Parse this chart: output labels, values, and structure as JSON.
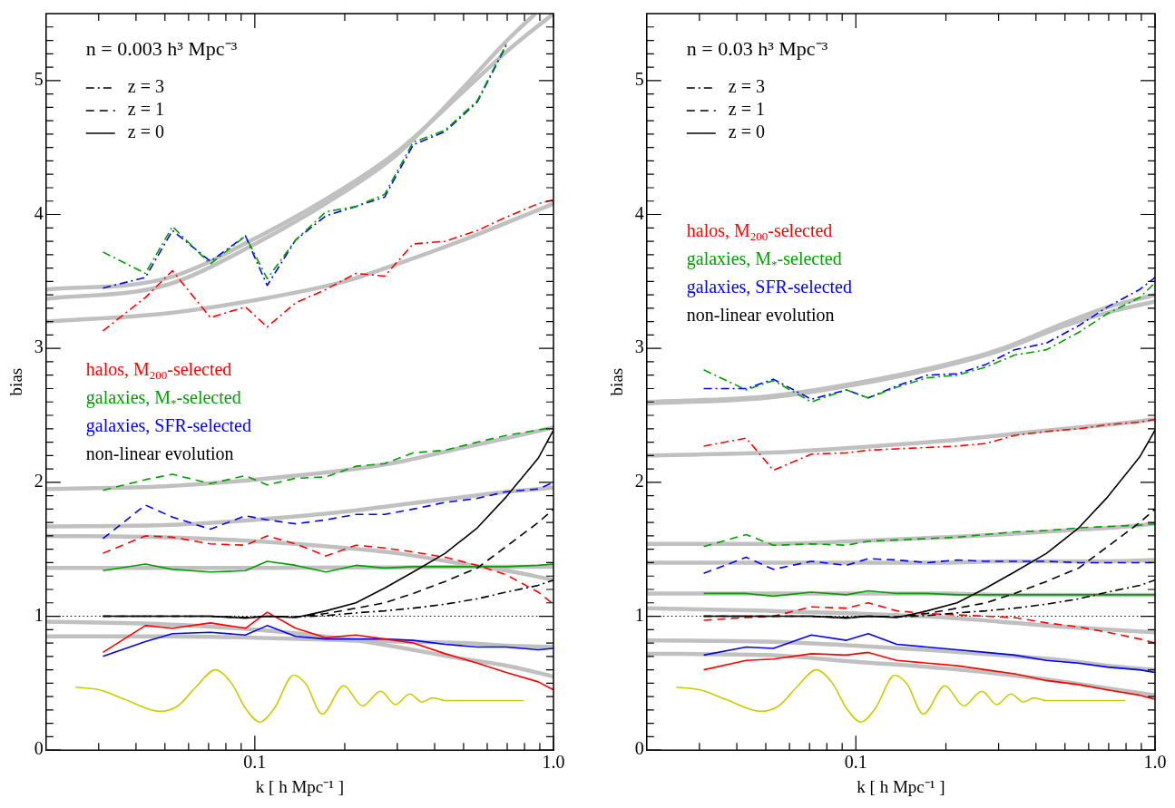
{
  "chart_data": [
    {
      "type": "line",
      "xlabel": "k [ h Mpc⁻¹ ]",
      "ylabel": "bias",
      "log": "x",
      "legend": "top left",
      "xlim": [
        0.02,
        1
      ],
      "ylim": [
        0,
        5.5
      ],
      "xticks": [
        {
          "value": 0.03,
          "label": null
        },
        {
          "value": 0.04,
          "label": null
        },
        {
          "value": 0.05,
          "label": null
        },
        {
          "value": 0.06,
          "label": null
        },
        {
          "value": 0.07,
          "label": null
        },
        {
          "value": 0.08,
          "label": null
        },
        {
          "value": 0.09,
          "label": null
        },
        0.1,
        {
          "value": 0.2,
          "label": null
        },
        {
          "value": 0.3,
          "label": null
        },
        {
          "value": 0.4,
          "label": null
        },
        {
          "value": 0.5,
          "label": null
        },
        {
          "value": 0.6,
          "label": null
        },
        {
          "value": 0.7,
          "label": null
        },
        {
          "value": 0.8,
          "label": null
        },
        {
          "value": 0.9,
          "label": null
        },
        {
          "value": 1,
          "label": "1.0"
        }
      ],
      "yticks": [
        0,
        {
          "value": 0.1,
          "label": null
        },
        {
          "value": 0.2,
          "label": null
        },
        {
          "value": 0.3,
          "label": null
        },
        {
          "value": 0.4,
          "label": null
        },
        {
          "value": 0.5,
          "label": null
        },
        {
          "value": 0.6,
          "label": null
        },
        {
          "value": 0.7,
          "label": null
        },
        {
          "value": 0.8,
          "label": null
        },
        {
          "value": 0.9,
          "label": null
        },
        1,
        {
          "value": 1.1,
          "label": null
        },
        {
          "value": 1.2,
          "label": null
        },
        {
          "value": 1.3,
          "label": null
        },
        {
          "value": 1.4,
          "label": null
        },
        {
          "value": 1.5,
          "label": null
        },
        {
          "value": 1.6,
          "label": null
        },
        {
          "value": 1.7,
          "label": null
        },
        {
          "value": 1.8,
          "label": null
        },
        {
          "value": 1.9,
          "label": null
        },
        2,
        {
          "value": 2.1,
          "label": null
        },
        {
          "value": 2.2,
          "label": null
        },
        {
          "value": 2.3,
          "label": null
        },
        {
          "value": 2.4,
          "label": null
        },
        {
          "value": 2.5,
          "label": null
        },
        {
          "value": 2.6,
          "label": null
        },
        {
          "value": 2.7,
          "label": null
        },
        {
          "value": 2.8,
          "label": null
        },
        {
          "value": 2.9,
          "label": null
        },
        3,
        {
          "value": 3.1,
          "label": null
        },
        {
          "value": 3.2,
          "label": null
        },
        {
          "value": 3.3,
          "label": null
        },
        {
          "value": 3.4,
          "label": null
        },
        {
          "value": 3.5,
          "label": null
        },
        {
          "value": 3.6,
          "label": null
        },
        {
          "value": 3.7,
          "label": null
        },
        {
          "value": 3.8,
          "label": null
        },
        {
          "value": 3.9,
          "label": null
        },
        4,
        {
          "value": 4.1,
          "label": null
        },
        {
          "value": 4.2,
          "label": null
        },
        {
          "value": 4.3,
          "label": null
        },
        {
          "value": 4.4,
          "label": null
        },
        {
          "value": 4.5,
          "label": null
        },
        {
          "value": 4.6,
          "label": null
        },
        {
          "value": 4.7,
          "label": null
        },
        {
          "value": 4.8,
          "label": null
        },
        {
          "value": 4.9,
          "label": null
        },
        5,
        {
          "value": 5.1,
          "label": null
        },
        {
          "value": 5.2,
          "label": null
        },
        {
          "value": 5.3,
          "label": null
        },
        {
          "value": 5.4,
          "label": null
        }
      ],
      "annotations": [
        "n = 0.003 h³ Mpc⁻³",
        "non-linear evolution"
      ],
      "ref_lines": [
        {
          "axis": "y",
          "value": 1,
          "color": "#000000",
          "line_style": "dotted"
        }
      ],
      "x": [
        0.031,
        0.043,
        0.053,
        0.071,
        0.093,
        0.11,
        0.137,
        0.173,
        0.218,
        0.272,
        0.339,
        0.434,
        0.556,
        0.694,
        0.889,
        1.0
      ],
      "series": [
        {
          "name": "z = 3",
          "color": "#000000",
          "line_style": "dashdot",
          "values": [
            1,
            1,
            1,
            1,
            0.99,
            1,
            0.995,
            1.005,
            1.025,
            1.04,
            1.06,
            1.09,
            1.13,
            1.18,
            1.23,
            1.27
          ]
        },
        {
          "name": "z = 1",
          "color": "#000000",
          "line_style": "dashed",
          "values": [
            1,
            1,
            1,
            1,
            0.99,
            1,
            0.995,
            1.02,
            1.06,
            1.1,
            1.17,
            1.26,
            1.36,
            1.52,
            1.7,
            1.8
          ]
        },
        {
          "name": "z = 0",
          "color": "#000000",
          "line_style": "solid",
          "values": [
            1,
            1,
            1,
            1,
            0.985,
            1,
            0.99,
            1.04,
            1.1,
            1.21,
            1.33,
            1.47,
            1.66,
            1.89,
            2.18,
            2.39
          ]
        },
        {
          "color": "#ff0000",
          "line_style": "dashdot",
          "values": [
            3.13,
            3.38,
            3.58,
            3.23,
            3.31,
            3.16,
            3.34,
            3.44,
            3.56,
            3.54,
            3.78,
            3.8,
            3.88,
            3.98,
            4.08,
            4.11
          ]
        },
        {
          "color": "#ff0000",
          "line_style": "dashed",
          "values": [
            1.47,
            1.6,
            1.59,
            1.54,
            1.53,
            1.6,
            1.54,
            1.45,
            1.53,
            1.51,
            1.48,
            1.44,
            1.38,
            1.31,
            1.18,
            1.09
          ]
        },
        {
          "name": "halos, M$_{200}$-selected",
          "color": "#ff0000",
          "line_style": "solid",
          "values": [
            0.73,
            0.93,
            0.91,
            0.95,
            0.91,
            1.03,
            0.91,
            0.84,
            0.86,
            0.83,
            0.8,
            0.72,
            0.65,
            0.58,
            0.51,
            0.45
          ]
        },
        {
          "color": "#00a000",
          "line_style": "dashdot",
          "values": [
            3.72,
            3.56,
            3.91,
            3.63,
            3.84,
            3.52,
            3.81,
            4.02,
            4.06,
            4.15,
            4.54,
            4.63,
            4.85,
            5.27,
            null,
            null
          ]
        },
        {
          "color": "#00a000",
          "line_style": "dashed",
          "values": [
            1.94,
            2.02,
            2.06,
            1.99,
            2.05,
            1.98,
            2.03,
            2.04,
            2.12,
            2.14,
            2.22,
            2.24,
            2.3,
            2.35,
            2.39,
            2.41
          ]
        },
        {
          "name": "galaxies, M$_{*}$-selected",
          "color": "#00a000",
          "line_style": "solid",
          "values": [
            1.34,
            1.39,
            1.35,
            1.33,
            1.34,
            1.41,
            1.38,
            1.33,
            1.38,
            1.36,
            1.37,
            1.37,
            1.37,
            1.37,
            1.38,
            1.39
          ]
        },
        {
          "color": "#0000ff",
          "line_style": "dashdot",
          "values": [
            3.45,
            3.53,
            3.88,
            3.65,
            3.84,
            3.47,
            3.81,
            3.99,
            4.06,
            4.13,
            4.52,
            4.62,
            4.84,
            5.26,
            null,
            null
          ]
        },
        {
          "color": "#0000ff",
          "line_style": "dashed",
          "values": [
            1.58,
            1.83,
            1.74,
            1.65,
            1.75,
            1.72,
            1.69,
            1.72,
            1.76,
            1.76,
            1.8,
            1.85,
            1.88,
            1.93,
            1.95,
            2.0
          ]
        },
        {
          "name": "galaxies, SFR-selected",
          "color": "#0000ff",
          "line_style": "solid",
          "values": [
            0.7,
            0.81,
            0.87,
            0.88,
            0.86,
            0.93,
            0.85,
            0.83,
            0.83,
            0.83,
            0.82,
            0.79,
            0.77,
            0.77,
            0.75,
            0.76
          ]
        },
        {
          "color": "#cccc00",
          "line_style": "solid",
          "x": [
            0.0251,
            0.0302,
            0.0366,
            0.0481,
            0.0552,
            0.0634,
            0.0738,
            0.0835,
            0.0932,
            0.104,
            0.116,
            0.135,
            0.1486,
            0.168,
            0.1984,
            0.2296,
            0.2636,
            0.296,
            0.33,
            0.363,
            0.394,
            0.434,
            0.572,
            0.796
          ],
          "values": [
            0.47,
            0.45,
            0.38,
            0.29,
            0.33,
            0.47,
            0.6,
            0.5,
            0.31,
            0.21,
            0.31,
            0.56,
            0.49,
            0.27,
            0.48,
            0.33,
            0.44,
            0.34,
            0.42,
            0.36,
            0.39,
            0.37,
            0.37,
            0.37
          ]
        },
        {
          "color": "#c0c0c0",
          "x": [
            0.02,
            0.05,
            0.1,
            0.2,
            0.3,
            0.5,
            0.7,
            1
          ],
          "values": [
            3.44,
            3.52,
            3.82,
            4.2,
            4.47,
            4.92,
            5.22,
            5.5
          ]
        },
        {
          "color": "#c0c0c0",
          "x": [
            0.02,
            0.05,
            0.1,
            0.2,
            0.3,
            0.5,
            0.7,
            0.87
          ],
          "values": [
            3.37,
            3.47,
            3.78,
            4.17,
            4.45,
            4.95,
            5.3,
            5.5
          ]
        },
        {
          "color": "#c0c0c0",
          "x": [
            0.02,
            0.05,
            0.1,
            0.2,
            0.3,
            0.5,
            0.7,
            1
          ],
          "values": [
            3.2,
            3.26,
            3.36,
            3.5,
            3.63,
            3.81,
            3.94,
            4.08
          ]
        },
        {
          "color": "#c0c0c0",
          "x": [
            0.02,
            0.05,
            0.1,
            0.2,
            0.3,
            0.5,
            0.7,
            1
          ],
          "values": [
            1.95,
            1.97,
            2.02,
            2.09,
            2.15,
            2.26,
            2.33,
            2.41
          ]
        },
        {
          "color": "#c0c0c0",
          "x": [
            0.02,
            0.05,
            0.1,
            0.2,
            0.3,
            0.5,
            0.7,
            1
          ],
          "values": [
            1.67,
            1.68,
            1.72,
            1.78,
            1.83,
            1.89,
            1.93,
            1.96
          ]
        },
        {
          "color": "#c0c0c0",
          "x": [
            0.02,
            0.05,
            0.1,
            0.2,
            0.3,
            0.5,
            0.7,
            1
          ],
          "values": [
            1.6,
            1.59,
            1.56,
            1.51,
            1.47,
            1.39,
            1.34,
            1.27
          ]
        },
        {
          "color": "#c0c0c0",
          "x": [
            0.02,
            0.05,
            0.1,
            0.2,
            0.3,
            0.5,
            0.7,
            1
          ],
          "values": [
            1.36,
            1.36,
            1.36,
            1.365,
            1.365,
            1.37,
            1.37,
            1.37
          ]
        },
        {
          "color": "#c0c0c0",
          "x": [
            0.02,
            0.05,
            0.1,
            0.2,
            0.3,
            0.5,
            0.7,
            1
          ],
          "values": [
            0.85,
            0.85,
            0.84,
            0.82,
            0.81,
            0.8,
            0.78,
            0.77
          ]
        },
        {
          "color": "#c0c0c0",
          "x": [
            0.02,
            0.05,
            0.1,
            0.2,
            0.3,
            0.5,
            0.7,
            1
          ],
          "values": [
            0.96,
            0.94,
            0.9,
            0.83,
            0.77,
            0.68,
            0.63,
            0.55
          ]
        }
      ]
    },
    {
      "type": "line",
      "xlabel": "k [ h Mpc⁻¹ ]",
      "ylabel": "bias",
      "log": "x",
      "legend": "top left",
      "xlim": [
        0.02,
        1
      ],
      "ylim": [
        0,
        5.5
      ],
      "xticks": [
        {
          "value": 0.03,
          "label": null
        },
        {
          "value": 0.04,
          "label": null
        },
        {
          "value": 0.05,
          "label": null
        },
        {
          "value": 0.06,
          "label": null
        },
        {
          "value": 0.07,
          "label": null
        },
        {
          "value": 0.08,
          "label": null
        },
        {
          "value": 0.09,
          "label": null
        },
        0.1,
        {
          "value": 0.2,
          "label": null
        },
        {
          "value": 0.3,
          "label": null
        },
        {
          "value": 0.4,
          "label": null
        },
        {
          "value": 0.5,
          "label": null
        },
        {
          "value": 0.6,
          "label": null
        },
        {
          "value": 0.7,
          "label": null
        },
        {
          "value": 0.8,
          "label": null
        },
        {
          "value": 0.9,
          "label": null
        },
        {
          "value": 1,
          "label": "1.0"
        }
      ],
      "yticks": [
        0,
        {
          "value": 0.1,
          "label": null
        },
        {
          "value": 0.2,
          "label": null
        },
        {
          "value": 0.3,
          "label": null
        },
        {
          "value": 0.4,
          "label": null
        },
        {
          "value": 0.5,
          "label": null
        },
        {
          "value": 0.6,
          "label": null
        },
        {
          "value": 0.7,
          "label": null
        },
        {
          "value": 0.8,
          "label": null
        },
        {
          "value": 0.9,
          "label": null
        },
        1,
        {
          "value": 1.1,
          "label": null
        },
        {
          "value": 1.2,
          "label": null
        },
        {
          "value": 1.3,
          "label": null
        },
        {
          "value": 1.4,
          "label": null
        },
        {
          "value": 1.5,
          "label": null
        },
        {
          "value": 1.6,
          "label": null
        },
        {
          "value": 1.7,
          "label": null
        },
        {
          "value": 1.8,
          "label": null
        },
        {
          "value": 1.9,
          "label": null
        },
        2,
        {
          "value": 2.1,
          "label": null
        },
        {
          "value": 2.2,
          "label": null
        },
        {
          "value": 2.3,
          "label": null
        },
        {
          "value": 2.4,
          "label": null
        },
        {
          "value": 2.5,
          "label": null
        },
        {
          "value": 2.6,
          "label": null
        },
        {
          "value": 2.7,
          "label": null
        },
        {
          "value": 2.8,
          "label": null
        },
        {
          "value": 2.9,
          "label": null
        },
        3,
        {
          "value": 3.1,
          "label": null
        },
        {
          "value": 3.2,
          "label": null
        },
        {
          "value": 3.3,
          "label": null
        },
        {
          "value": 3.4,
          "label": null
        },
        {
          "value": 3.5,
          "label": null
        },
        {
          "value": 3.6,
          "label": null
        },
        {
          "value": 3.7,
          "label": null
        },
        {
          "value": 3.8,
          "label": null
        },
        {
          "value": 3.9,
          "label": null
        },
        4,
        {
          "value": 4.1,
          "label": null
        },
        {
          "value": 4.2,
          "label": null
        },
        {
          "value": 4.3,
          "label": null
        },
        {
          "value": 4.4,
          "label": null
        },
        {
          "value": 4.5,
          "label": null
        },
        {
          "value": 4.6,
          "label": null
        },
        {
          "value": 4.7,
          "label": null
        },
        {
          "value": 4.8,
          "label": null
        },
        {
          "value": 4.9,
          "label": null
        },
        5,
        {
          "value": 5.1,
          "label": null
        },
        {
          "value": 5.2,
          "label": null
        },
        {
          "value": 5.3,
          "label": null
        },
        {
          "value": 5.4,
          "label": null
        }
      ],
      "annotations": [
        "n = 0.03 h³ Mpc⁻³",
        "non-linear evolution"
      ],
      "ref_lines": [
        {
          "axis": "y",
          "value": 1,
          "color": "#000000",
          "line_style": "dotted"
        }
      ],
      "x": [
        0.031,
        0.043,
        0.053,
        0.071,
        0.093,
        0.11,
        0.137,
        0.173,
        0.218,
        0.272,
        0.339,
        0.434,
        0.556,
        0.694,
        0.889,
        1.0
      ],
      "series": [
        {
          "name": "z = 3",
          "color": "#000000",
          "line_style": "dashdot",
          "values": [
            1,
            1,
            1,
            1,
            0.99,
            1,
            0.995,
            1.005,
            1.025,
            1.04,
            1.06,
            1.09,
            1.13,
            1.18,
            1.23,
            1.27
          ]
        },
        {
          "name": "z = 1",
          "color": "#000000",
          "line_style": "dashed",
          "values": [
            1,
            1,
            1,
            1,
            0.99,
            1,
            0.995,
            1.02,
            1.06,
            1.1,
            1.17,
            1.26,
            1.36,
            1.52,
            1.7,
            1.8
          ]
        },
        {
          "name": "z = 0",
          "color": "#000000",
          "line_style": "solid",
          "values": [
            1,
            1,
            1,
            1,
            0.985,
            1,
            0.99,
            1.04,
            1.1,
            1.21,
            1.33,
            1.47,
            1.66,
            1.89,
            2.19,
            2.39
          ]
        },
        {
          "color": "#ff0000",
          "line_style": "dashdot",
          "values": [
            2.27,
            2.33,
            2.09,
            2.21,
            2.22,
            2.24,
            2.25,
            2.26,
            2.27,
            2.29,
            2.35,
            2.38,
            2.4,
            2.43,
            2.45,
            2.47
          ]
        },
        {
          "color": "#ff0000",
          "line_style": "dashed",
          "values": [
            0.97,
            0.99,
            1.0,
            1.07,
            1.06,
            1.1,
            1.04,
            1.02,
            1.01,
            1.0,
            0.99,
            0.95,
            0.92,
            0.88,
            0.83,
            0.8
          ]
        },
        {
          "name": "halos, M$_{200}$-selected",
          "color": "#ff0000",
          "line_style": "solid",
          "values": [
            0.6,
            0.67,
            0.68,
            0.72,
            0.71,
            0.73,
            0.67,
            0.65,
            0.63,
            0.6,
            0.57,
            0.52,
            0.49,
            0.45,
            0.41,
            0.38
          ]
        },
        {
          "color": "#00a000",
          "line_style": "dashdot",
          "values": [
            2.84,
            2.69,
            2.76,
            2.6,
            2.69,
            2.63,
            2.71,
            2.78,
            2.8,
            2.86,
            2.95,
            2.99,
            3.12,
            3.26,
            3.38,
            3.49
          ]
        },
        {
          "color": "#00a000",
          "line_style": "dashed",
          "values": [
            1.52,
            1.61,
            1.53,
            1.54,
            1.53,
            1.56,
            1.57,
            1.58,
            1.59,
            1.61,
            1.63,
            1.64,
            1.66,
            1.67,
            1.68,
            1.69
          ]
        },
        {
          "name": "galaxies, M$_{*}$-selected",
          "color": "#00a000",
          "line_style": "solid",
          "values": [
            1.17,
            1.17,
            1.15,
            1.18,
            1.16,
            1.19,
            1.17,
            1.17,
            1.16,
            1.16,
            1.16,
            1.16,
            1.16,
            1.16,
            1.16,
            1.16
          ]
        },
        {
          "color": "#0000ff",
          "line_style": "dashdot",
          "values": [
            2.7,
            2.7,
            2.77,
            2.62,
            2.69,
            2.63,
            2.72,
            2.8,
            2.81,
            2.88,
            2.99,
            3.04,
            3.17,
            3.31,
            3.44,
            3.53
          ]
        },
        {
          "color": "#0000ff",
          "line_style": "dashed",
          "values": [
            1.32,
            1.44,
            1.35,
            1.41,
            1.38,
            1.43,
            1.42,
            1.4,
            1.42,
            1.41,
            1.41,
            1.41,
            1.4,
            1.4,
            1.4,
            1.4
          ]
        },
        {
          "name": "galaxies, SFR-selected",
          "color": "#0000ff",
          "line_style": "solid",
          "values": [
            0.71,
            0.77,
            0.76,
            0.86,
            0.82,
            0.87,
            0.79,
            0.77,
            0.75,
            0.73,
            0.71,
            0.67,
            0.65,
            0.62,
            0.6,
            0.58
          ]
        },
        {
          "color": "#cccc00",
          "line_style": "solid",
          "x": [
            0.0251,
            0.0302,
            0.0366,
            0.0481,
            0.0552,
            0.0634,
            0.0738,
            0.0835,
            0.0932,
            0.104,
            0.116,
            0.135,
            0.1486,
            0.168,
            0.1984,
            0.2296,
            0.2636,
            0.296,
            0.33,
            0.363,
            0.394,
            0.434,
            0.572,
            0.796
          ],
          "values": [
            0.47,
            0.45,
            0.38,
            0.29,
            0.33,
            0.47,
            0.6,
            0.5,
            0.31,
            0.21,
            0.31,
            0.56,
            0.49,
            0.27,
            0.48,
            0.33,
            0.44,
            0.34,
            0.42,
            0.36,
            0.39,
            0.37,
            0.37,
            0.37
          ]
        },
        {
          "color": "#c0c0c0",
          "x": [
            0.02,
            0.05,
            0.1,
            0.2,
            0.3,
            0.5,
            0.7,
            1
          ],
          "values": [
            2.6,
            2.64,
            2.74,
            2.88,
            2.99,
            3.19,
            3.31,
            3.4
          ]
        },
        {
          "color": "#c0c0c0",
          "x": [
            0.02,
            0.05,
            0.1,
            0.2,
            0.3,
            0.5,
            0.7,
            1
          ],
          "values": [
            2.59,
            2.63,
            2.73,
            2.87,
            2.98,
            3.17,
            3.27,
            3.35
          ]
        },
        {
          "color": "#c0c0c0",
          "x": [
            0.02,
            0.05,
            0.1,
            0.2,
            0.3,
            0.5,
            0.7,
            1
          ],
          "values": [
            2.2,
            2.22,
            2.26,
            2.31,
            2.35,
            2.4,
            2.43,
            2.47
          ]
        },
        {
          "color": "#c0c0c0",
          "x": [
            0.02,
            0.05,
            0.1,
            0.2,
            0.3,
            0.5,
            0.7,
            1
          ],
          "values": [
            1.54,
            1.54,
            1.56,
            1.59,
            1.61,
            1.64,
            1.66,
            1.69
          ]
        },
        {
          "color": "#c0c0c0",
          "x": [
            0.02,
            0.05,
            0.1,
            0.2,
            0.3,
            0.5,
            0.7,
            1
          ],
          "values": [
            1.4,
            1.4,
            1.4,
            1.4,
            1.41,
            1.41,
            1.41,
            1.42
          ]
        },
        {
          "color": "#c0c0c0",
          "x": [
            0.02,
            0.05,
            0.1,
            0.2,
            0.3,
            0.5,
            0.7,
            1
          ],
          "values": [
            1.06,
            1.04,
            1.02,
            0.99,
            0.96,
            0.92,
            0.9,
            0.88
          ]
        },
        {
          "color": "#c0c0c0",
          "x": [
            0.02,
            0.05,
            0.1,
            0.2,
            0.3,
            0.5,
            0.7,
            1
          ],
          "values": [
            1.17,
            1.17,
            1.17,
            1.17,
            1.16,
            1.16,
            1.16,
            1.16
          ]
        },
        {
          "color": "#c0c0c0",
          "x": [
            0.02,
            0.05,
            0.1,
            0.2,
            0.3,
            0.5,
            0.7,
            1
          ],
          "values": [
            0.82,
            0.81,
            0.78,
            0.74,
            0.71,
            0.67,
            0.63,
            0.6
          ]
        },
        {
          "color": "#c0c0c0",
          "x": [
            0.02,
            0.05,
            0.1,
            0.2,
            0.3,
            0.5,
            0.7,
            1
          ],
          "values": [
            0.72,
            0.71,
            0.66,
            0.61,
            0.57,
            0.51,
            0.46,
            0.41
          ]
        }
      ]
    }
  ]
}
